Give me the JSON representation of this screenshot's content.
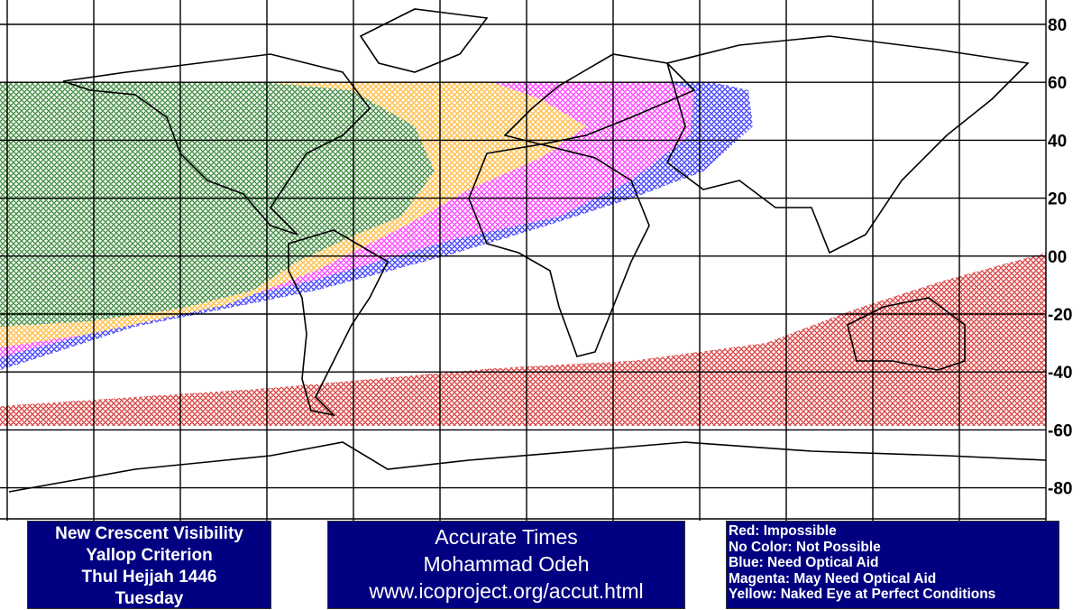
{
  "lat_labels": [
    "80",
    "60",
    "40",
    "20",
    "00",
    "-20",
    "-40",
    "-60",
    "-80"
  ],
  "info_box": {
    "lines": [
      "New Crescent Visibility",
      "Yallop Criterion",
      "Thul Hejjah 1446",
      "Tuesday"
    ]
  },
  "credit_box": {
    "lines": [
      "Accurate Times",
      "Mohammad Odeh",
      "www.icoproject.org/accut.html"
    ]
  },
  "legend": {
    "lines": [
      "Red: Impossible",
      "No Color: Not Possible",
      "Blue: Need Optical Aid",
      "Magenta: May Need Optical Aid",
      "Yellow: Naked Eye at Perfect Conditions"
    ]
  }
}
